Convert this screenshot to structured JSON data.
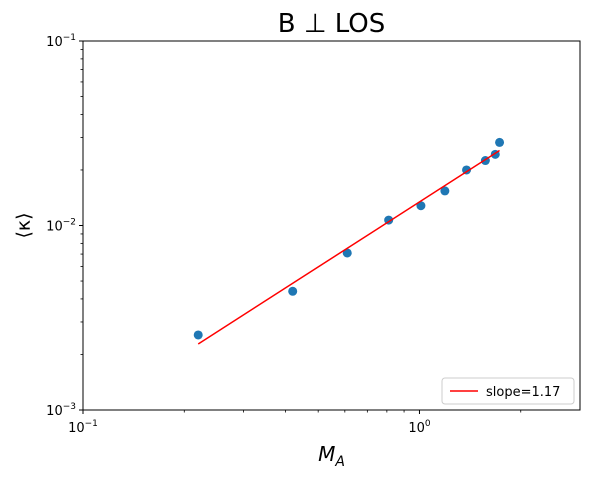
{
  "chart_data": {
    "type": "scatter",
    "title": "B ⊥ LOS",
    "xlabel": "M",
    "xlabel_subscript": "A",
    "ylabel": "⟨κ⟩",
    "xscale": "log",
    "yscale": "log",
    "xlim": [
      0.1,
      3.0
    ],
    "ylim": [
      0.001,
      0.1
    ],
    "x_ticks": [
      {
        "value": 0.1,
        "base": "10",
        "exp": "−1"
      },
      {
        "value": 1.0,
        "base": "10",
        "exp": "0"
      }
    ],
    "y_ticks": [
      {
        "value": 0.001,
        "base": "10",
        "exp": "−3"
      },
      {
        "value": 0.01,
        "base": "10",
        "exp": "−2"
      },
      {
        "value": 0.1,
        "base": "10",
        "exp": "−1"
      }
    ],
    "grid": false,
    "legend_position": "lower-right",
    "series": [
      {
        "kind": "scatter",
        "color": "#1f77b4",
        "points": [
          {
            "x": 0.22,
            "y": 0.00255
          },
          {
            "x": 0.42,
            "y": 0.0044
          },
          {
            "x": 0.61,
            "y": 0.0071
          },
          {
            "x": 0.81,
            "y": 0.0107
          },
          {
            "x": 1.01,
            "y": 0.0128
          },
          {
            "x": 1.19,
            "y": 0.0154
          },
          {
            "x": 1.38,
            "y": 0.02
          },
          {
            "x": 1.57,
            "y": 0.0225
          },
          {
            "x": 1.68,
            "y": 0.0243
          },
          {
            "x": 1.73,
            "y": 0.0282
          }
        ]
      },
      {
        "kind": "line",
        "name": "slope=1.17",
        "color": "#ff0000",
        "points": [
          {
            "x": 0.22,
            "y": 0.00228
          },
          {
            "x": 1.73,
            "y": 0.0255
          }
        ]
      }
    ]
  }
}
